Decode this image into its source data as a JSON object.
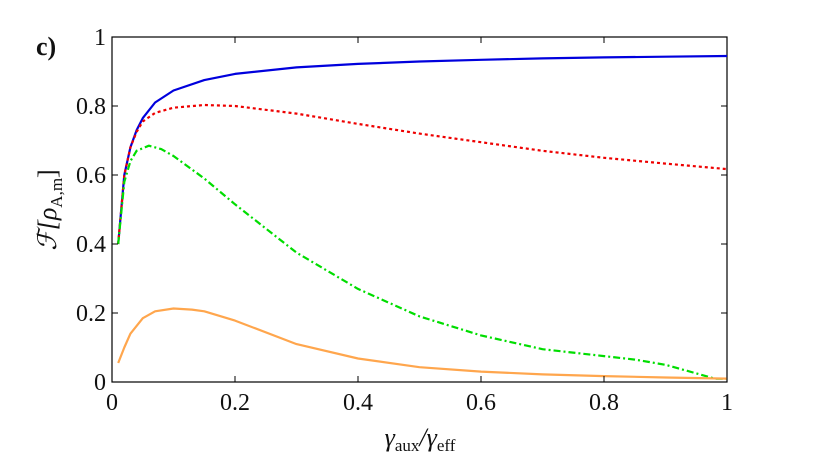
{
  "chart_data": {
    "type": "line",
    "panel_label": "c)",
    "xlabel": {
      "main": "γ",
      "sub1": "aux",
      "sep": "/γ",
      "sub2": "eff"
    },
    "ylabel": {
      "main": "ℱ[ρ",
      "sub": "A,m",
      "close": "]"
    },
    "xlim": [
      0,
      1
    ],
    "ylim": [
      0,
      1
    ],
    "xticks": [
      0,
      0.2,
      0.4,
      0.6,
      0.8,
      1
    ],
    "xtick_labels": [
      "0",
      "0.2",
      "0.4",
      "0.6",
      "0.8",
      "1"
    ],
    "yticks": [
      0,
      0.2,
      0.4,
      0.6,
      0.8,
      1
    ],
    "ytick_labels": [
      "0",
      "0.2",
      "0.4",
      "0.6",
      "0.8",
      "1"
    ],
    "grid": false,
    "legend": "none",
    "series": [
      {
        "color": "#0000dd",
        "style": "solid",
        "points": [
          [
            0.01,
            0.4
          ],
          [
            0.02,
            0.6
          ],
          [
            0.03,
            0.68
          ],
          [
            0.04,
            0.73
          ],
          [
            0.05,
            0.765
          ],
          [
            0.07,
            0.81
          ],
          [
            0.1,
            0.845
          ],
          [
            0.15,
            0.875
          ],
          [
            0.2,
            0.893
          ],
          [
            0.3,
            0.912
          ],
          [
            0.4,
            0.922
          ],
          [
            0.5,
            0.929
          ],
          [
            0.6,
            0.934
          ],
          [
            0.7,
            0.938
          ],
          [
            0.8,
            0.941
          ],
          [
            0.9,
            0.943
          ],
          [
            1.0,
            0.945
          ]
        ]
      },
      {
        "color": "#ee0000",
        "style": "dotted",
        "points": [
          [
            0.01,
            0.4
          ],
          [
            0.02,
            0.6
          ],
          [
            0.03,
            0.68
          ],
          [
            0.04,
            0.725
          ],
          [
            0.05,
            0.755
          ],
          [
            0.07,
            0.78
          ],
          [
            0.1,
            0.795
          ],
          [
            0.15,
            0.803
          ],
          [
            0.2,
            0.8
          ],
          [
            0.3,
            0.778
          ],
          [
            0.4,
            0.748
          ],
          [
            0.5,
            0.72
          ],
          [
            0.6,
            0.695
          ],
          [
            0.7,
            0.67
          ],
          [
            0.8,
            0.65
          ],
          [
            0.9,
            0.633
          ],
          [
            1.0,
            0.617
          ]
        ]
      },
      {
        "color": "#00dd00",
        "style": "dashdot",
        "points": [
          [
            0.01,
            0.4
          ],
          [
            0.02,
            0.58
          ],
          [
            0.03,
            0.64
          ],
          [
            0.04,
            0.67
          ],
          [
            0.06,
            0.685
          ],
          [
            0.08,
            0.675
          ],
          [
            0.1,
            0.655
          ],
          [
            0.15,
            0.59
          ],
          [
            0.2,
            0.515
          ],
          [
            0.3,
            0.375
          ],
          [
            0.4,
            0.27
          ],
          [
            0.5,
            0.19
          ],
          [
            0.6,
            0.135
          ],
          [
            0.7,
            0.095
          ],
          [
            0.8,
            0.075
          ],
          [
            0.85,
            0.065
          ],
          [
            0.9,
            0.05
          ],
          [
            0.95,
            0.025
          ],
          [
            0.98,
            0.01
          ],
          [
            1.0,
            0.01
          ]
        ]
      },
      {
        "color": "#ffa64d",
        "style": "solid",
        "points": [
          [
            0.01,
            0.055
          ],
          [
            0.02,
            0.1
          ],
          [
            0.03,
            0.14
          ],
          [
            0.05,
            0.185
          ],
          [
            0.07,
            0.205
          ],
          [
            0.1,
            0.213
          ],
          [
            0.13,
            0.21
          ],
          [
            0.15,
            0.205
          ],
          [
            0.2,
            0.178
          ],
          [
            0.3,
            0.11
          ],
          [
            0.4,
            0.068
          ],
          [
            0.5,
            0.043
          ],
          [
            0.6,
            0.03
          ],
          [
            0.7,
            0.022
          ],
          [
            0.8,
            0.017
          ],
          [
            0.9,
            0.013
          ],
          [
            1.0,
            0.01
          ]
        ]
      }
    ]
  }
}
